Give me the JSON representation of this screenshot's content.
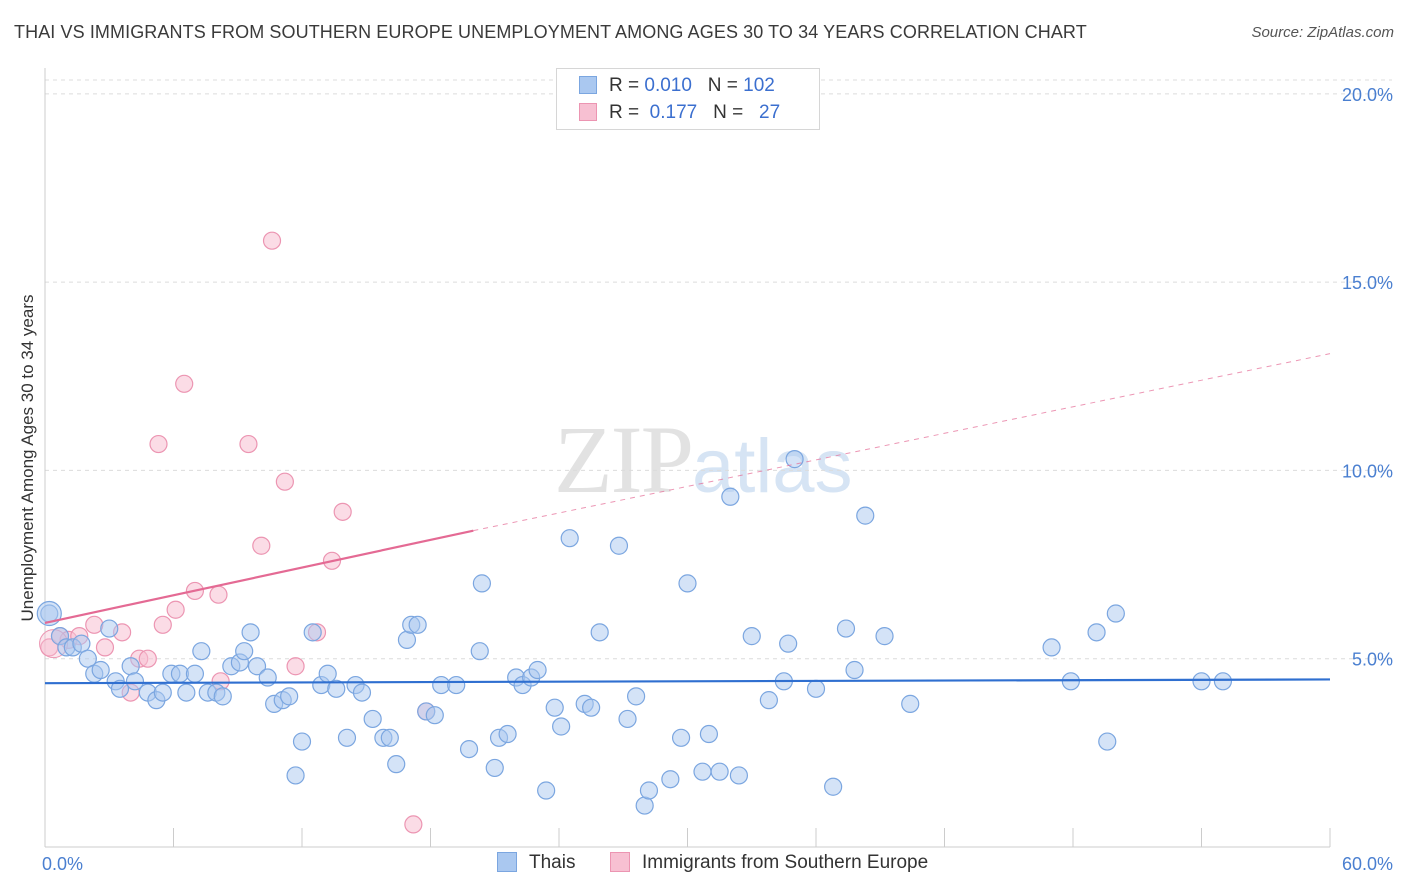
{
  "header": {
    "title": "THAI VS IMMIGRANTS FROM SOUTHERN EUROPE UNEMPLOYMENT AMONG AGES 30 TO 34 YEARS CORRELATION CHART",
    "source": "Source: ZipAtlas.com"
  },
  "watermark": {
    "zip": "ZIP",
    "atlas": "atlas"
  },
  "legend": {
    "rows": [
      {
        "r_label": "R =",
        "r_value": "0.010",
        "n_label": "N =",
        "n_value": "102"
      },
      {
        "r_label": "R =",
        "r_value": "0.177",
        "n_label": "N =",
        "n_value": "27"
      }
    ]
  },
  "chart_data": {
    "type": "scatter",
    "title": "THAI VS IMMIGRANTS FROM SOUTHERN EUROPE UNEMPLOYMENT AMONG AGES 30 TO 34 YEARS CORRELATION CHART",
    "ylabel": "Unemployment Among Ages 30 to 34 years",
    "xlim": [
      0,
      60
    ],
    "ylim": [
      0,
      20.5
    ],
    "x_tick_labels": [
      "0.0%",
      "60.0%"
    ],
    "y_ticks": [
      {
        "value": 5,
        "label": "5.0%"
      },
      {
        "value": 10,
        "label": "10.0%"
      },
      {
        "value": 15,
        "label": "15.0%"
      },
      {
        "value": 20,
        "label": "20.0%"
      }
    ],
    "colors": {
      "thais_fill": "#aac8f0",
      "thais_stroke": "#7ba6e0",
      "thais_line": "#2f6fd0",
      "southern_fill": "#f7c0d2",
      "southern_stroke": "#ec95b2",
      "southern_line": "#e46a94"
    },
    "series": [
      {
        "name": "Thais",
        "r": 0.01,
        "n": 102,
        "trend": {
          "x": [
            0,
            60
          ],
          "y": [
            4.35,
            4.45
          ]
        },
        "points": [
          [
            0.2,
            6.2
          ],
          [
            0.7,
            5.6
          ],
          [
            1.0,
            5.3
          ],
          [
            1.3,
            5.3
          ],
          [
            1.7,
            5.4
          ],
          [
            2.0,
            5.0
          ],
          [
            2.3,
            4.6
          ],
          [
            2.6,
            4.7
          ],
          [
            3.0,
            5.8
          ],
          [
            3.3,
            4.4
          ],
          [
            3.5,
            4.2
          ],
          [
            4.0,
            4.8
          ],
          [
            4.2,
            4.4
          ],
          [
            4.8,
            4.1
          ],
          [
            5.2,
            3.9
          ],
          [
            5.5,
            4.1
          ],
          [
            5.9,
            4.6
          ],
          [
            6.3,
            4.6
          ],
          [
            6.6,
            4.1
          ],
          [
            7.0,
            4.6
          ],
          [
            7.3,
            5.2
          ],
          [
            7.6,
            4.1
          ],
          [
            8.0,
            4.1
          ],
          [
            8.3,
            4.0
          ],
          [
            8.7,
            4.8
          ],
          [
            9.1,
            4.9
          ],
          [
            9.3,
            5.2
          ],
          [
            9.6,
            5.7
          ],
          [
            9.9,
            4.8
          ],
          [
            10.4,
            4.5
          ],
          [
            10.7,
            3.8
          ],
          [
            11.1,
            3.9
          ],
          [
            11.4,
            4.0
          ],
          [
            11.7,
            1.9
          ],
          [
            12.0,
            2.8
          ],
          [
            12.5,
            5.7
          ],
          [
            12.9,
            4.3
          ],
          [
            13.2,
            4.6
          ],
          [
            13.6,
            4.2
          ],
          [
            14.1,
            2.9
          ],
          [
            14.5,
            4.3
          ],
          [
            14.8,
            4.1
          ],
          [
            15.3,
            3.4
          ],
          [
            15.8,
            2.9
          ],
          [
            16.1,
            2.9
          ],
          [
            16.4,
            2.2
          ],
          [
            16.9,
            5.5
          ],
          [
            17.1,
            5.9
          ],
          [
            17.4,
            5.9
          ],
          [
            17.8,
            3.6
          ],
          [
            18.2,
            3.5
          ],
          [
            18.5,
            4.3
          ],
          [
            19.2,
            4.3
          ],
          [
            19.8,
            2.6
          ],
          [
            20.3,
            5.2
          ],
          [
            20.4,
            7.0
          ],
          [
            21.0,
            2.1
          ],
          [
            21.2,
            2.9
          ],
          [
            21.6,
            3.0
          ],
          [
            22.0,
            4.5
          ],
          [
            22.3,
            4.3
          ],
          [
            22.7,
            4.5
          ],
          [
            23.0,
            4.7
          ],
          [
            23.4,
            1.5
          ],
          [
            23.8,
            3.7
          ],
          [
            24.1,
            3.2
          ],
          [
            24.5,
            8.2
          ],
          [
            25.2,
            3.8
          ],
          [
            25.5,
            3.7
          ],
          [
            25.9,
            5.7
          ],
          [
            26.8,
            8.0
          ],
          [
            27.2,
            3.4
          ],
          [
            27.6,
            4.0
          ],
          [
            28.0,
            1.1
          ],
          [
            28.2,
            1.5
          ],
          [
            29.2,
            1.8
          ],
          [
            29.7,
            2.9
          ],
          [
            30.0,
            7.0
          ],
          [
            30.7,
            2.0
          ],
          [
            31.0,
            3.0
          ],
          [
            31.5,
            2.0
          ],
          [
            32.0,
            9.3
          ],
          [
            32.4,
            1.9
          ],
          [
            33.0,
            5.6
          ],
          [
            33.8,
            3.9
          ],
          [
            34.5,
            4.4
          ],
          [
            34.7,
            5.4
          ],
          [
            35.0,
            10.3
          ],
          [
            36.0,
            4.2
          ],
          [
            36.8,
            1.6
          ],
          [
            37.4,
            5.8
          ],
          [
            37.8,
            4.7
          ],
          [
            38.3,
            8.8
          ],
          [
            39.2,
            5.6
          ],
          [
            40.4,
            3.8
          ],
          [
            47.0,
            5.3
          ],
          [
            47.9,
            4.4
          ],
          [
            49.1,
            5.7
          ],
          [
            49.6,
            2.8
          ],
          [
            50.0,
            6.2
          ],
          [
            54.0,
            4.4
          ],
          [
            55.0,
            4.4
          ]
        ]
      },
      {
        "name": "Immigrants from Southern Europe",
        "r": 0.177,
        "n": 27,
        "trend": {
          "x": [
            0,
            20
          ],
          "y": [
            5.95,
            8.4
          ]
        },
        "trend_extended": {
          "x": [
            20,
            60
          ],
          "y": [
            8.4,
            13.1
          ]
        },
        "points": [
          [
            0.2,
            5.3
          ],
          [
            0.7,
            5.6
          ],
          [
            1.1,
            5.5
          ],
          [
            1.6,
            5.6
          ],
          [
            2.3,
            5.9
          ],
          [
            2.8,
            5.3
          ],
          [
            3.6,
            5.7
          ],
          [
            4.0,
            4.1
          ],
          [
            4.4,
            5.0
          ],
          [
            4.8,
            5.0
          ],
          [
            5.3,
            10.7
          ],
          [
            5.5,
            5.9
          ],
          [
            6.1,
            6.3
          ],
          [
            6.5,
            12.3
          ],
          [
            7.0,
            6.8
          ],
          [
            8.1,
            6.7
          ],
          [
            9.5,
            10.7
          ],
          [
            10.1,
            8.0
          ],
          [
            10.6,
            16.1
          ],
          [
            11.2,
            9.7
          ],
          [
            11.7,
            4.8
          ],
          [
            12.7,
            5.7
          ],
          [
            13.4,
            7.6
          ],
          [
            13.9,
            8.9
          ],
          [
            17.2,
            0.6
          ],
          [
            17.8,
            3.6
          ],
          [
            8.2,
            4.4
          ]
        ]
      }
    ]
  },
  "bottom_legend": {
    "items": [
      {
        "label": "Thais"
      },
      {
        "label": "Immigrants from Southern Europe"
      }
    ]
  }
}
